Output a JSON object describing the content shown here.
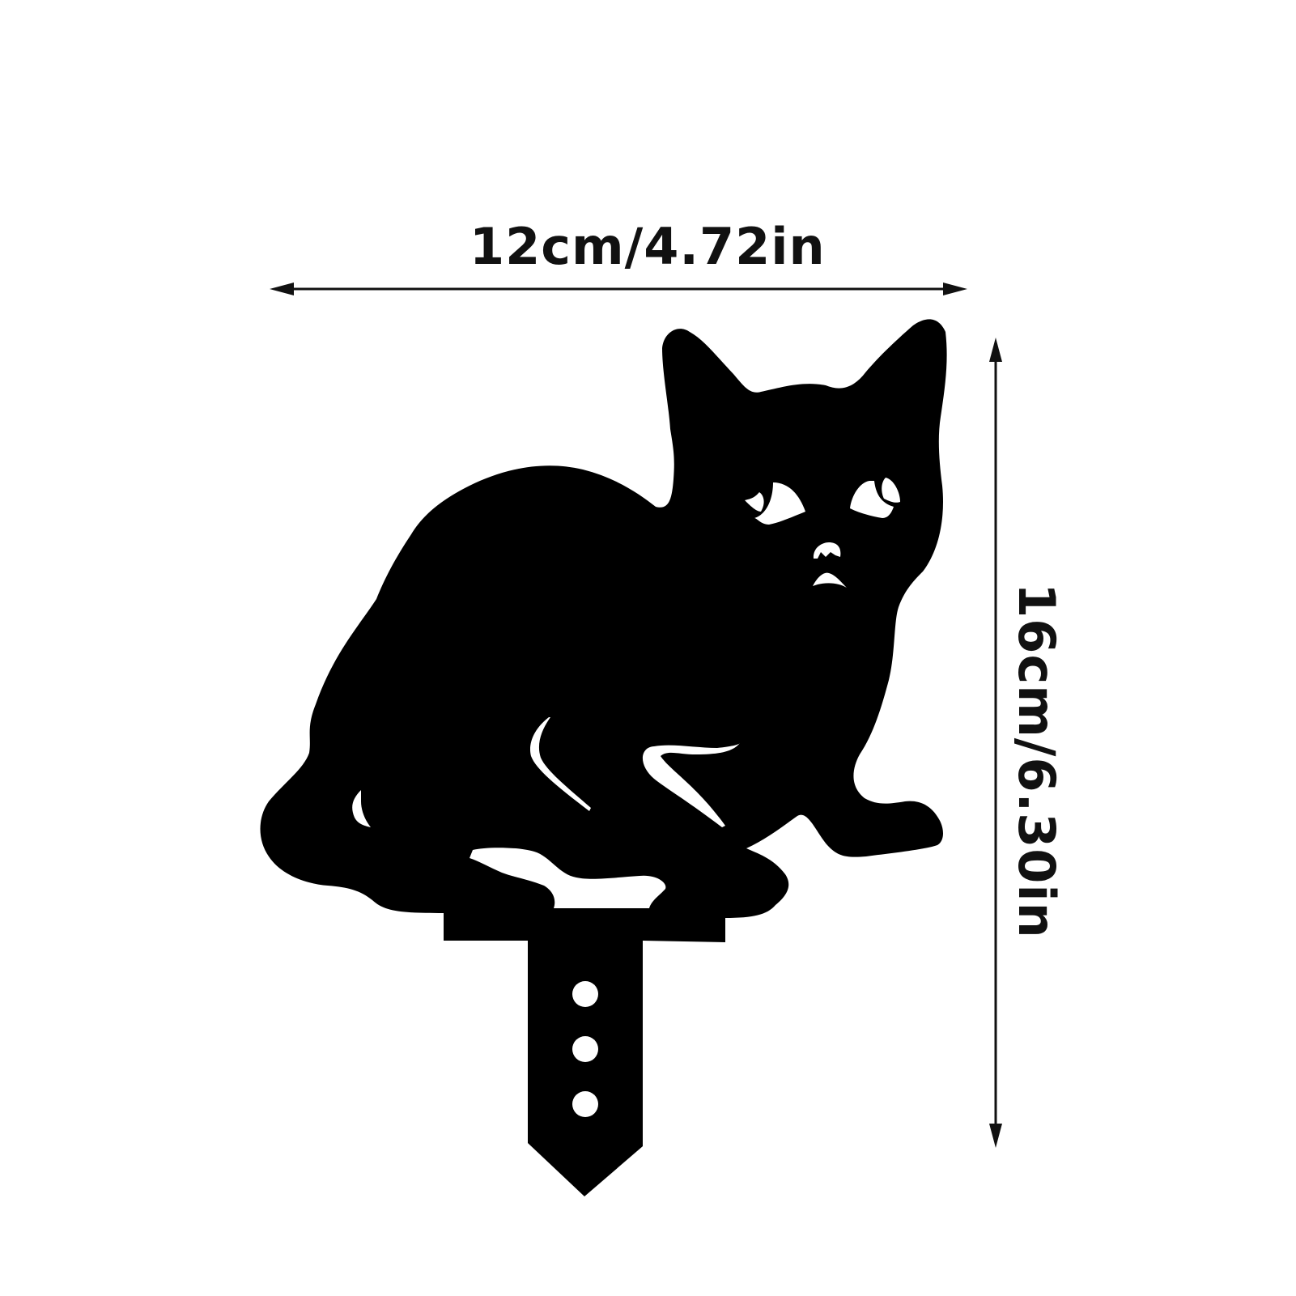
{
  "dimensions": {
    "width_label": "12cm/4.72in",
    "height_label": "16cm/6.30in"
  },
  "colors": {
    "silhouette": "#000000",
    "background": "#ffffff",
    "arrow": "#111111"
  },
  "illustration": {
    "subject": "cat-silhouette-garden-stake",
    "stake_holes": 3
  }
}
